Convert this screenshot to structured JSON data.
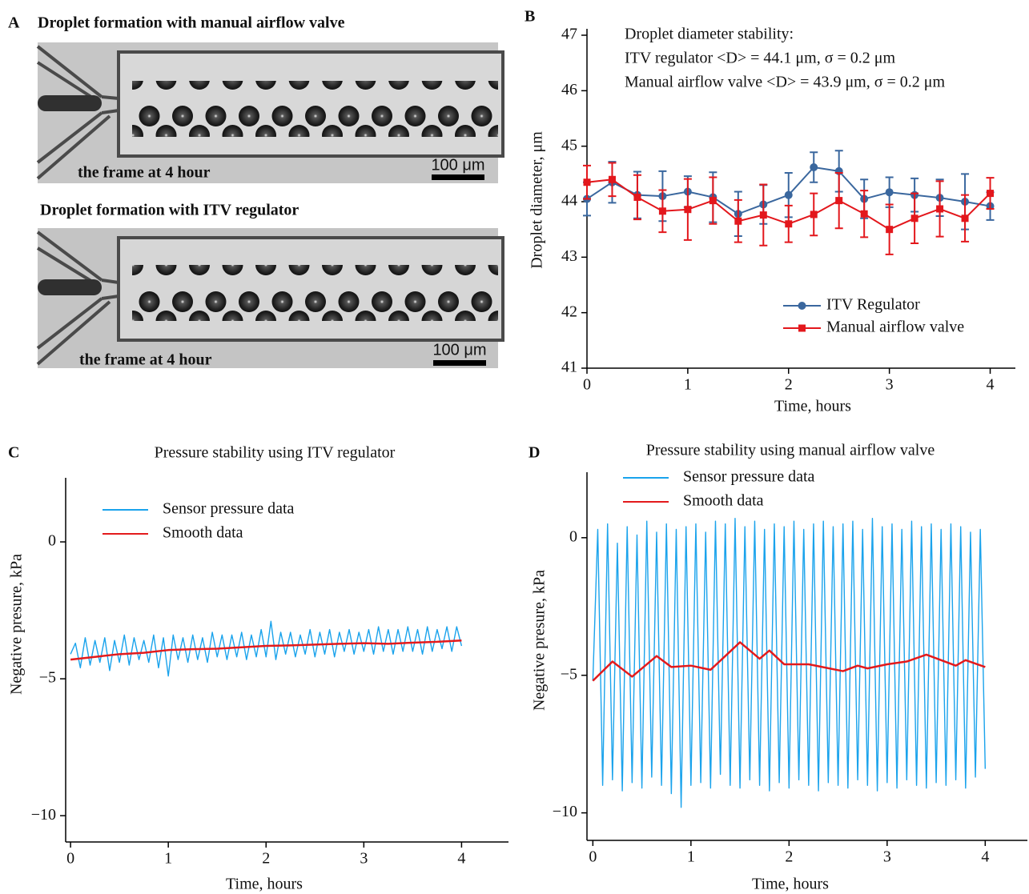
{
  "panel_a": {
    "label": "A",
    "images": [
      {
        "title": "Droplet formation with manual airflow valve",
        "caption": "the frame at 4 hour",
        "scale_bar": "100 μm"
      },
      {
        "title": "Droplet formation with ITV regulator",
        "caption": "the frame at 4 hour",
        "scale_bar": "100 μm"
      }
    ]
  },
  "chart_data": [
    {
      "type": "line",
      "panel": "B",
      "ylabel": "Droplet diameter, μm",
      "xlabel": "Time, hours",
      "annotations": [
        {
          "text": "Droplet diameter stability:",
          "color": "#111111"
        },
        {
          "text": "ITV regulator  <D> = 44.1 μm,  σ = 0.2 μm",
          "color": "#3a679e"
        },
        {
          "text": "Manual airflow valve  <D> = 43.9 μm,  σ = 0.2 μm",
          "color": "#e3171c"
        }
      ],
      "x": [
        0,
        0.25,
        0.5,
        0.75,
        1,
        1.25,
        1.5,
        1.75,
        2,
        2.25,
        2.5,
        2.75,
        3,
        3.25,
        3.5,
        3.75,
        4
      ],
      "series": [
        {
          "name": "ITV Regulator",
          "color": "#3a679e",
          "marker": "circle",
          "values": [
            44.05,
            44.35,
            44.12,
            44.1,
            44.18,
            44.08,
            43.78,
            43.95,
            44.12,
            44.62,
            44.55,
            44.05,
            44.17,
            44.12,
            44.07,
            44.0,
            43.92
          ],
          "errors": [
            0.3,
            0.37,
            0.42,
            0.45,
            0.28,
            0.45,
            0.4,
            0.35,
            0.4,
            0.27,
            0.37,
            0.35,
            0.27,
            0.3,
            0.33,
            0.5,
            0.25
          ]
        },
        {
          "name": "Manual airflow valve",
          "color": "#e3171c",
          "marker": "square",
          "values": [
            44.35,
            44.4,
            44.08,
            43.83,
            43.86,
            44.02,
            43.65,
            43.76,
            43.6,
            43.77,
            44.02,
            43.78,
            43.5,
            43.7,
            43.87,
            43.7,
            44.15
          ],
          "errors": [
            0.3,
            0.3,
            0.4,
            0.38,
            0.55,
            0.42,
            0.38,
            0.55,
            0.33,
            0.38,
            0.5,
            0.42,
            0.45,
            0.45,
            0.5,
            0.42,
            0.28
          ]
        }
      ],
      "xlim": [
        0,
        4.25
      ],
      "xticks": [
        0,
        1,
        2,
        3,
        4
      ],
      "ylim": [
        41,
        47
      ],
      "yticks": [
        41,
        42,
        43,
        44,
        45,
        46,
        47
      ],
      "legend": "lower right"
    },
    {
      "type": "line",
      "panel": "C",
      "title": "Pressure stability using ITV regulator",
      "ylabel": "Negative presure, kPa",
      "xlabel": "Time, hours",
      "x": [
        0,
        0.05,
        0.1,
        0.15,
        0.2,
        0.25,
        0.3,
        0.35,
        0.4,
        0.45,
        0.5,
        0.55,
        0.6,
        0.65,
        0.7,
        0.75,
        0.8,
        0.85,
        0.9,
        0.95,
        1,
        1.05,
        1.1,
        1.15,
        1.2,
        1.25,
        1.3,
        1.35,
        1.4,
        1.45,
        1.5,
        1.55,
        1.6,
        1.65,
        1.7,
        1.75,
        1.8,
        1.85,
        1.9,
        1.95,
        2,
        2.05,
        2.1,
        2.15,
        2.2,
        2.25,
        2.3,
        2.35,
        2.4,
        2.45,
        2.5,
        2.55,
        2.6,
        2.65,
        2.7,
        2.75,
        2.8,
        2.85,
        2.9,
        2.95,
        3,
        3.05,
        3.1,
        3.15,
        3.2,
        3.25,
        3.3,
        3.35,
        3.4,
        3.45,
        3.5,
        3.55,
        3.6,
        3.65,
        3.7,
        3.75,
        3.8,
        3.85,
        3.9,
        3.95,
        4
      ],
      "series": [
        {
          "name": "Sensor pressure data",
          "color": "#1aa3ec",
          "values": [
            -4.1,
            -3.7,
            -4.6,
            -3.5,
            -4.5,
            -3.6,
            -4.4,
            -3.5,
            -4.7,
            -3.6,
            -4.4,
            -3.4,
            -4.5,
            -3.5,
            -4.3,
            -3.6,
            -4.4,
            -3.4,
            -4.6,
            -3.5,
            -4.9,
            -3.4,
            -4.3,
            -3.5,
            -4.4,
            -3.4,
            -4.3,
            -3.5,
            -4.4,
            -3.3,
            -4.2,
            -3.4,
            -4.3,
            -3.4,
            -4.2,
            -3.3,
            -4.3,
            -3.4,
            -4.2,
            -3.2,
            -4.2,
            -2.9,
            -4.3,
            -3.3,
            -4.1,
            -3.3,
            -4.2,
            -3.4,
            -4.1,
            -3.2,
            -4.2,
            -3.3,
            -4.1,
            -3.2,
            -4.2,
            -3.3,
            -4.0,
            -3.2,
            -4.1,
            -3.3,
            -4.0,
            -3.2,
            -4.1,
            -3.1,
            -4.0,
            -3.2,
            -4.1,
            -3.2,
            -4.0,
            -3.1,
            -4.0,
            -3.2,
            -4.1,
            -3.1,
            -4.0,
            -3.2,
            -3.9,
            -3.1,
            -4.0,
            -3.1,
            -3.8
          ]
        },
        {
          "name": "Smooth data",
          "color": "#e31a1c",
          "x": [
            0,
            0.25,
            0.5,
            0.75,
            1,
            1.25,
            1.5,
            1.75,
            2,
            2.25,
            2.5,
            2.75,
            3,
            3.25,
            3.5,
            3.75,
            4
          ],
          "values": [
            -4.3,
            -4.2,
            -4.1,
            -4.05,
            -3.95,
            -3.92,
            -3.9,
            -3.85,
            -3.8,
            -3.78,
            -3.75,
            -3.72,
            -3.7,
            -3.72,
            -3.68,
            -3.65,
            -3.6
          ]
        }
      ],
      "xlim": [
        -0.05,
        4.48
      ],
      "xticks": [
        0,
        1,
        2,
        3,
        4
      ],
      "ylim": [
        -10.96,
        2.34
      ],
      "yticks": [
        {
          "value": -10,
          "label": "−10"
        },
        {
          "value": -5,
          "label": "−5"
        },
        0
      ],
      "legend": "upper left"
    },
    {
      "type": "line",
      "panel": "D",
      "title": "Pressure stability using manual airflow valve",
      "ylabel": "Negative presure, kPa",
      "xlabel": "Time, hours",
      "x": [
        0,
        0.05,
        0.1,
        0.15,
        0.2,
        0.25,
        0.3,
        0.35,
        0.4,
        0.45,
        0.5,
        0.55,
        0.6,
        0.65,
        0.7,
        0.75,
        0.8,
        0.85,
        0.9,
        0.95,
        1,
        1.05,
        1.1,
        1.15,
        1.2,
        1.25,
        1.3,
        1.35,
        1.4,
        1.45,
        1.5,
        1.55,
        1.6,
        1.65,
        1.7,
        1.75,
        1.8,
        1.85,
        1.9,
        1.95,
        2,
        2.05,
        2.1,
        2.15,
        2.2,
        2.25,
        2.3,
        2.35,
        2.4,
        2.45,
        2.5,
        2.55,
        2.6,
        2.65,
        2.7,
        2.75,
        2.8,
        2.85,
        2.9,
        2.95,
        3,
        3.05,
        3.1,
        3.15,
        3.2,
        3.25,
        3.3,
        3.35,
        3.4,
        3.45,
        3.5,
        3.55,
        3.6,
        3.65,
        3.7,
        3.75,
        3.8,
        3.85,
        3.9,
        3.95,
        4
      ],
      "series": [
        {
          "name": "Sensor pressure data",
          "color": "#1aa3ec",
          "values": [
            -5.2,
            0.3,
            -9.0,
            0.5,
            -8.8,
            -0.2,
            -9.2,
            0.4,
            -8.9,
            0.1,
            -9.1,
            0.6,
            -8.7,
            0.2,
            -9.0,
            0.5,
            -9.3,
            0.3,
            -9.8,
            0.4,
            -9.0,
            0.5,
            -8.9,
            0.2,
            -9.1,
            0.6,
            -8.6,
            0.5,
            -9.0,
            0.7,
            -9.1,
            0.4,
            -8.8,
            0.6,
            -9.0,
            0.3,
            -9.2,
            0.5,
            -8.9,
            0.4,
            -9.1,
            0.6,
            -8.8,
            0.3,
            -9.0,
            0.5,
            -9.2,
            0.6,
            -8.9,
            0.4,
            -9.0,
            0.5,
            -9.1,
            0.6,
            -8.8,
            0.3,
            -9.0,
            0.7,
            -9.2,
            0.4,
            -8.9,
            0.5,
            -9.1,
            0.3,
            -8.8,
            0.6,
            -9.0,
            0.4,
            -9.1,
            0.5,
            -8.9,
            0.3,
            -9.0,
            0.5,
            -8.8,
            0.4,
            -9.1,
            0.2,
            -8.7,
            0.3,
            -8.4
          ]
        },
        {
          "name": "Smooth data",
          "color": "#e31a1c",
          "x": [
            0,
            0.2,
            0.4,
            0.65,
            0.8,
            1.0,
            1.2,
            1.35,
            1.5,
            1.7,
            1.8,
            1.95,
            2.2,
            2.55,
            2.7,
            2.8,
            3.0,
            3.2,
            3.4,
            3.7,
            3.8,
            4.0
          ],
          "values": [
            -5.2,
            -4.5,
            -5.05,
            -4.3,
            -4.7,
            -4.65,
            -4.8,
            -4.3,
            -3.8,
            -4.4,
            -4.1,
            -4.6,
            -4.6,
            -4.85,
            -4.65,
            -4.75,
            -4.6,
            -4.5,
            -4.25,
            -4.65,
            -4.45,
            -4.7
          ]
        }
      ],
      "xlim": [
        -0.06,
        4.43
      ],
      "xticks": [
        0,
        1,
        2,
        3,
        4
      ],
      "ylim": [
        -11,
        2.38
      ],
      "yticks": [
        {
          "value": -10,
          "label": "−10"
        },
        {
          "value": -5,
          "label": "−5"
        },
        0
      ],
      "legend": "upper left"
    }
  ]
}
